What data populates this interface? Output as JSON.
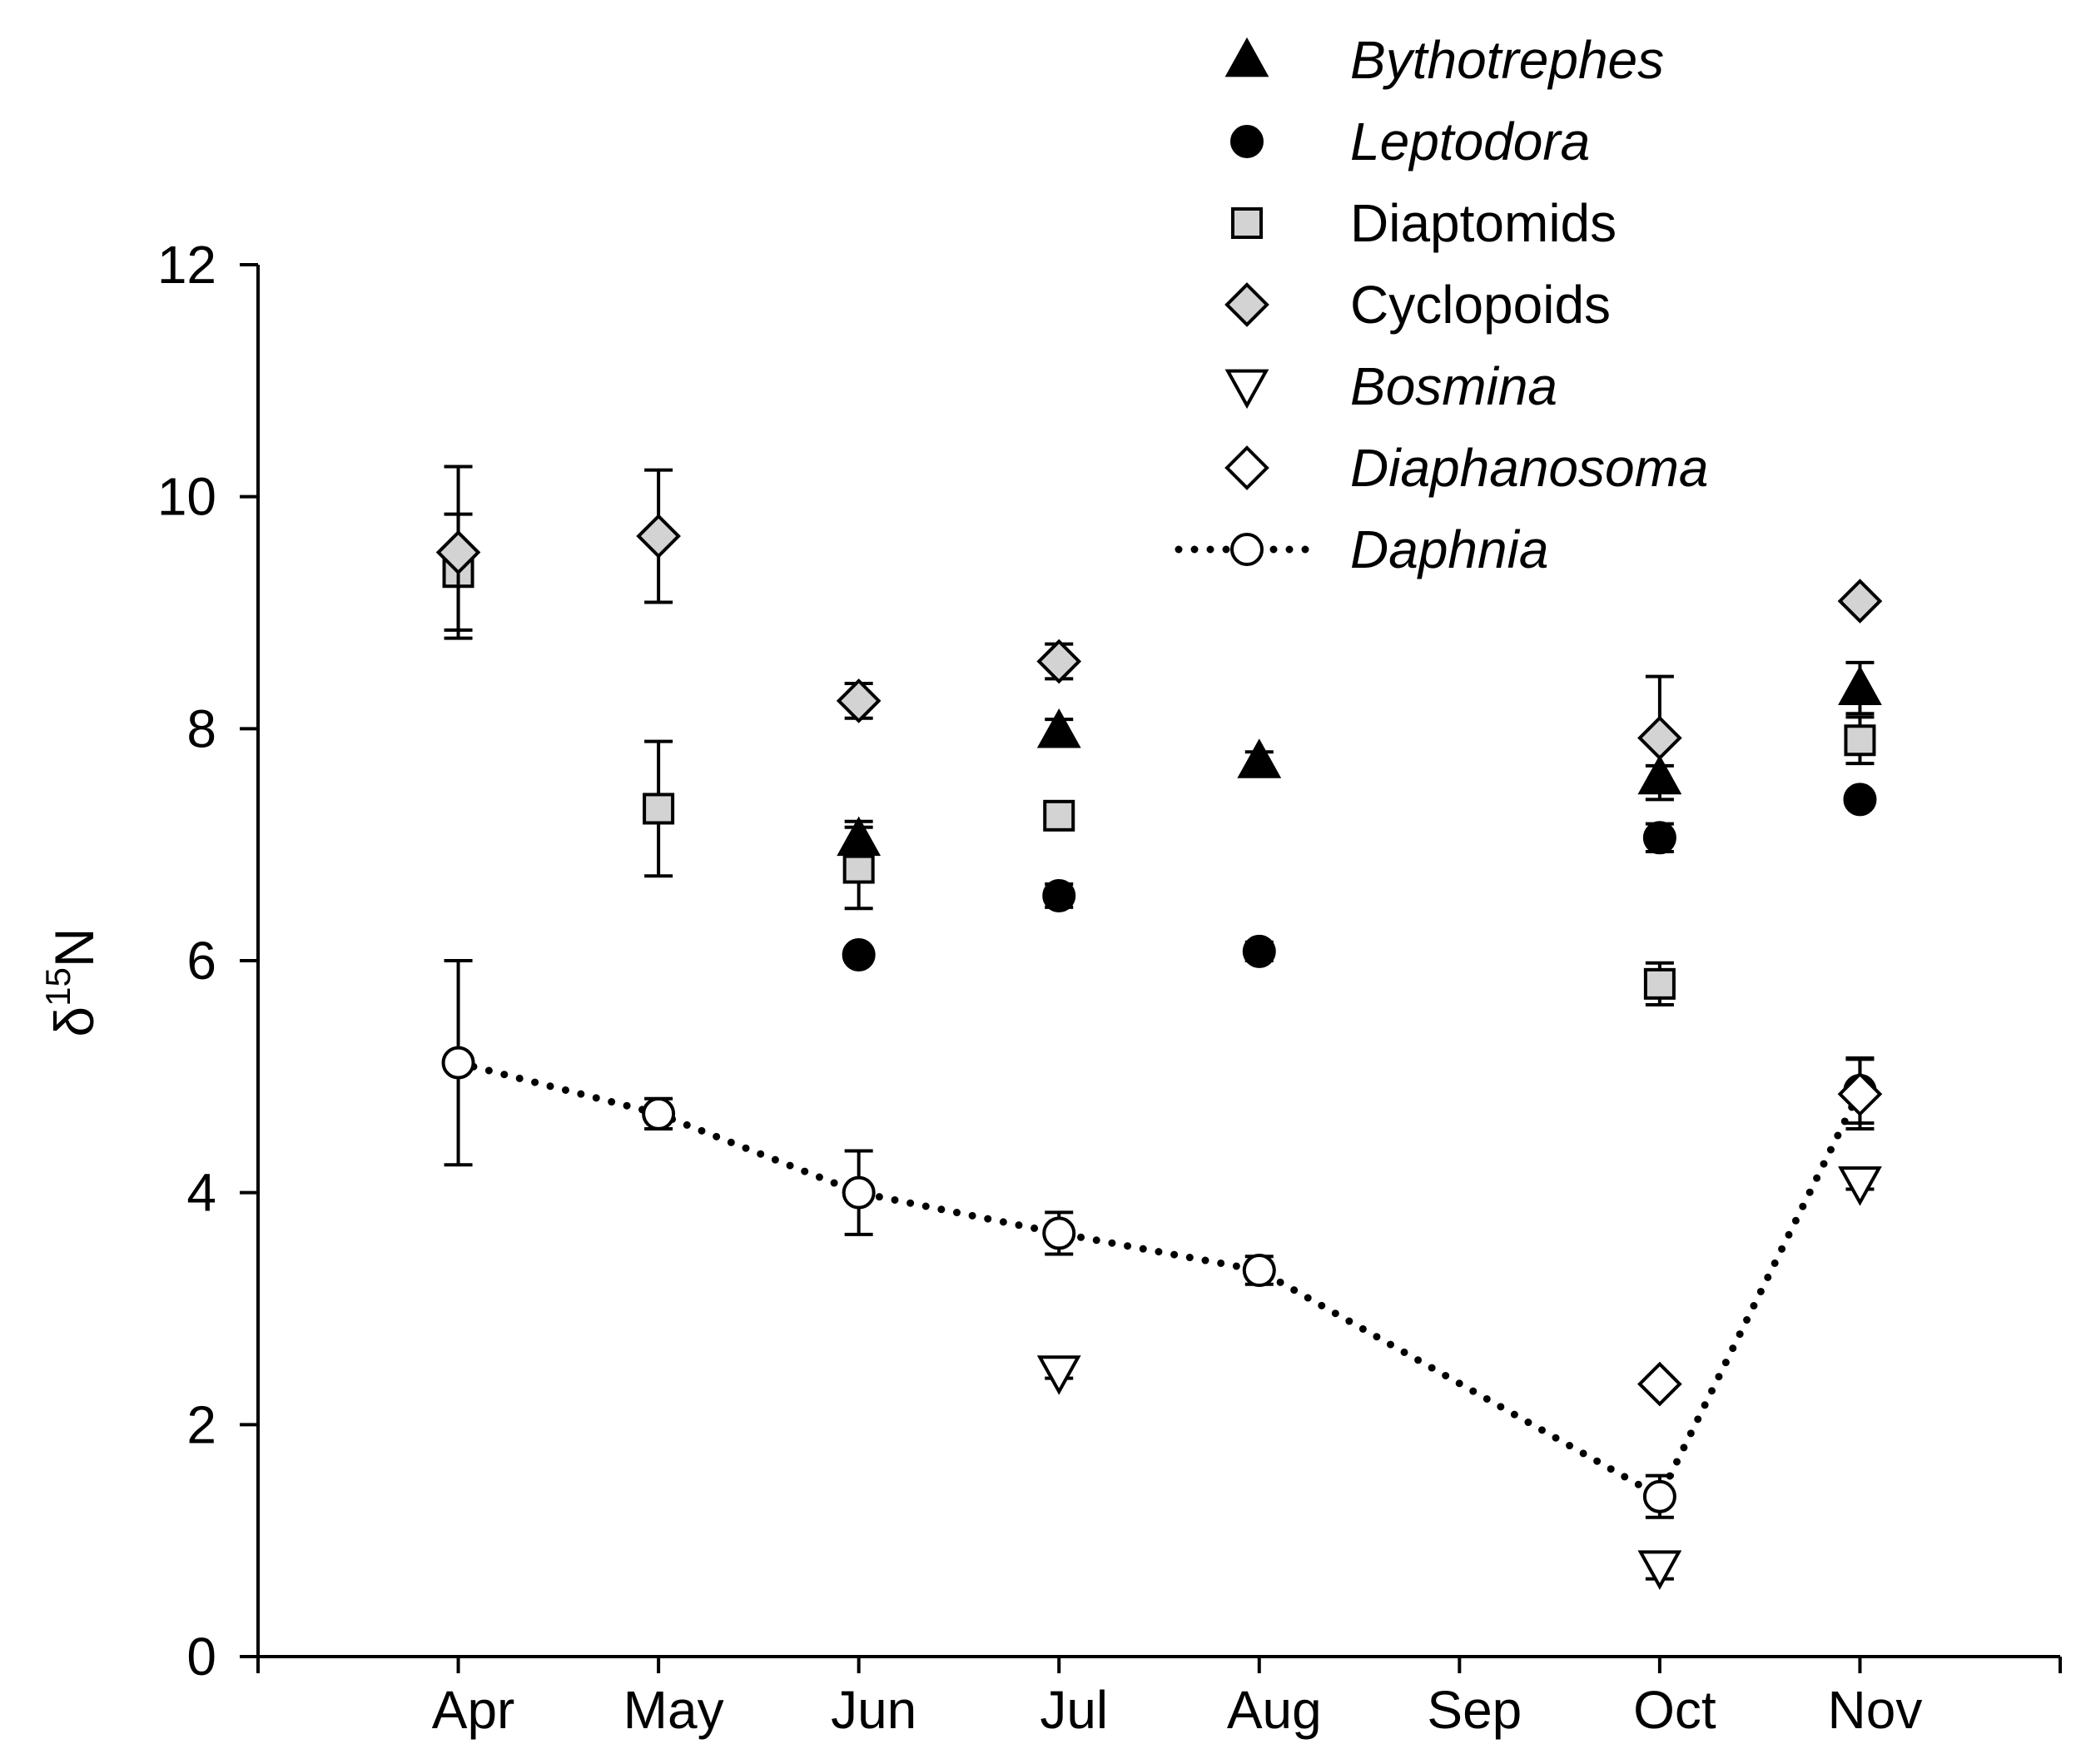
{
  "chart_data": {
    "type": "scatter",
    "title": "",
    "xlabel": "",
    "ylabel": {
      "delta": "δ",
      "superscript": "15",
      "element": "N"
    },
    "ylim": [
      0,
      12
    ],
    "yticks": [
      0,
      2,
      4,
      6,
      8,
      10,
      12
    ],
    "x_domain": [
      0,
      9
    ],
    "categories": [
      "Apr",
      "May",
      "Jun",
      "Jul",
      "Aug",
      "Sep",
      "Oct",
      "Nov"
    ],
    "category_positions": [
      1,
      2,
      3,
      4,
      5,
      6,
      7,
      8
    ],
    "legend_position": "top-right",
    "colors": {
      "black": "#000000",
      "gray": "#d3d3d3",
      "white": "#ffffff"
    },
    "series": [
      {
        "name": "Bythotrephes",
        "italic": true,
        "marker": "triangle-up",
        "fill": "#000000",
        "connected": false,
        "points": [
          {
            "x": "Jun",
            "y": 7.05,
            "err": 0.15
          },
          {
            "x": "Jul",
            "y": 7.98,
            "err": 0.1
          },
          {
            "x": "Aug",
            "y": 7.72,
            "err": 0.08
          },
          {
            "x": "Oct",
            "y": 7.58,
            "err": 0.1
          },
          {
            "x": "Nov",
            "y": 8.35,
            "err": 0.22
          }
        ]
      },
      {
        "name": "Leptodora",
        "italic": true,
        "marker": "circle",
        "fill": "#000000",
        "connected": false,
        "points": [
          {
            "x": "Jun",
            "y": 6.05,
            "err": 0.05
          },
          {
            "x": "Jul",
            "y": 6.56,
            "err": 0.1
          },
          {
            "x": "Aug",
            "y": 6.08,
            "err": 0.08
          },
          {
            "x": "Oct",
            "y": 7.06,
            "err": 0.12
          },
          {
            "x": "Nov",
            "y": 7.39,
            "err": 0.05
          }
        ]
      },
      {
        "name": "Diaptomids",
        "italic": false,
        "marker": "square",
        "fill": "#d3d3d3",
        "connected": false,
        "points": [
          {
            "x": "Apr",
            "y": 9.35,
            "err": 0.5
          },
          {
            "x": "May",
            "y": 7.31,
            "err": 0.58
          },
          {
            "x": "Jun",
            "y": 6.8,
            "err": 0.35
          },
          {
            "x": "Jul",
            "y": 7.25,
            "err": 0
          },
          {
            "x": "Oct",
            "y": 5.8,
            "err": 0.18
          },
          {
            "x": "Nov",
            "y": 7.9,
            "err": 0.2
          }
        ]
      },
      {
        "name": "Cyclopoids",
        "italic": false,
        "marker": "diamond",
        "fill": "#d3d3d3",
        "connected": false,
        "points": [
          {
            "x": "Apr",
            "y": 9.52,
            "err": 0.74
          },
          {
            "x": "May",
            "y": 9.66,
            "err": 0.57
          },
          {
            "x": "Jun",
            "y": 8.24,
            "err": 0.15
          },
          {
            "x": "Jul",
            "y": 8.58,
            "err": 0.15
          },
          {
            "x": "Oct",
            "y": 7.92,
            "err": 0.53
          },
          {
            "x": "Nov",
            "y": 9.1,
            "err": 0.05
          }
        ]
      },
      {
        "name": "Bosmina",
        "italic": true,
        "marker": "triangle-down",
        "fill": "#ffffff",
        "connected": false,
        "points": [
          {
            "x": "Jul",
            "y": 2.45,
            "err": 0.05
          },
          {
            "x": "Oct",
            "y": 0.77,
            "err": 0.1
          },
          {
            "x": "Nov",
            "y": 4.08,
            "err": 0.05
          }
        ]
      },
      {
        "name": "Diaphanosoma",
        "italic": true,
        "marker": "diamond",
        "fill": "#ffffff",
        "connected": false,
        "points": [
          {
            "x": "Oct",
            "y": 2.35,
            "err": 0
          },
          {
            "x": "Nov",
            "y": 4.85,
            "err": 0.3
          }
        ]
      },
      {
        "name": "Daphnia",
        "italic": true,
        "marker": "circle",
        "fill": "#ffffff",
        "connected": true,
        "points": [
          {
            "x": "Apr",
            "y": 5.12,
            "err": 0.88
          },
          {
            "x": "May",
            "y": 4.68,
            "err": 0.13
          },
          {
            "x": "Jun",
            "y": 4.0,
            "err": 0.36
          },
          {
            "x": "Jul",
            "y": 3.65,
            "err": 0.18
          },
          {
            "x": "Aug",
            "y": 3.33,
            "err": 0.12
          },
          {
            "x": "Oct",
            "y": 1.38,
            "err": 0.18
          },
          {
            "x": "Nov",
            "y": 4.88,
            "err": 0.28
          }
        ]
      }
    ]
  }
}
